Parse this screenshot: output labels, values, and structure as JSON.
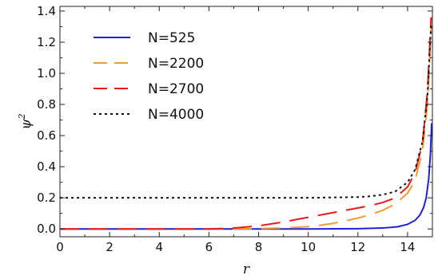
{
  "chart_data": {
    "type": "line",
    "title": "",
    "xlabel": "r",
    "ylabel": "ψ²",
    "xlim": [
      0,
      15
    ],
    "ylim": [
      -0.05,
      1.43
    ],
    "xticks": [
      0,
      2,
      4,
      6,
      8,
      10,
      12,
      14
    ],
    "yticks": [
      0.0,
      0.2,
      0.4,
      0.6,
      0.8,
      1.0,
      1.2,
      1.4
    ],
    "xtick_labels": [
      "0",
      "2",
      "4",
      "6",
      "8",
      "10",
      "12",
      "14"
    ],
    "ytick_labels": [
      "0.0",
      "0.2",
      "0.4",
      "0.6",
      "0.8",
      "1.0",
      "1.2",
      "1.4"
    ],
    "grid": false,
    "legend_position": "top-left",
    "series": [
      {
        "name": "N=525",
        "color": "#1f1fe0",
        "dash": "solid",
        "x": [
          0,
          7,
          10,
          12,
          13,
          13.6,
          14.0,
          14.3,
          14.5,
          14.65,
          14.75,
          14.85,
          14.92,
          14.97
        ],
        "y": [
          0.0,
          0.0,
          0.0,
          0.002,
          0.006,
          0.014,
          0.03,
          0.055,
          0.09,
          0.14,
          0.2,
          0.32,
          0.48,
          0.68
        ]
      },
      {
        "name": "N=2200",
        "color": "#f29b33",
        "dash": "dashed",
        "x": [
          0,
          6,
          8,
          9,
          10,
          10.5,
          11,
          11.5,
          12,
          12.5,
          13,
          13.5,
          14,
          14.3,
          14.6,
          14.8,
          14.95
        ],
        "y": [
          0.0,
          0.0,
          0.002,
          0.006,
          0.015,
          0.024,
          0.036,
          0.052,
          0.07,
          0.092,
          0.12,
          0.16,
          0.23,
          0.31,
          0.5,
          0.8,
          1.3
        ]
      },
      {
        "name": "N=2700",
        "color": "#e81919",
        "dash": "dashed",
        "x": [
          0,
          6,
          7,
          8,
          9,
          10,
          11,
          12,
          12.5,
          13,
          13.5,
          14,
          14.3,
          14.6,
          14.8,
          14.95
        ],
        "y": [
          0.0,
          0.0,
          0.006,
          0.02,
          0.045,
          0.075,
          0.105,
          0.135,
          0.15,
          0.17,
          0.2,
          0.27,
          0.36,
          0.55,
          0.88,
          1.36
        ]
      },
      {
        "name": "N=4000",
        "color": "#111111",
        "dash": "dotted",
        "x": [
          0,
          6,
          10,
          12,
          12.5,
          13,
          13.5,
          14,
          14.3,
          14.6,
          14.8,
          14.95
        ],
        "y": [
          0.2,
          0.2,
          0.2,
          0.205,
          0.21,
          0.22,
          0.24,
          0.3,
          0.38,
          0.56,
          0.85,
          1.32
        ]
      }
    ]
  }
}
